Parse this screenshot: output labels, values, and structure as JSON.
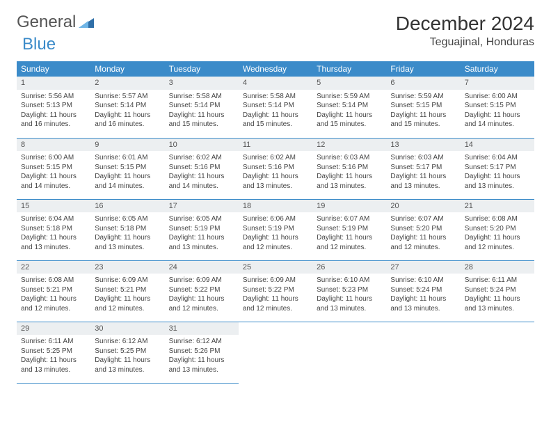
{
  "brand": {
    "part1": "General",
    "part2": "Blue"
  },
  "title": "December 2024",
  "location": "Teguajinal, Honduras",
  "colors": {
    "header_bg": "#3b8bc9",
    "header_fg": "#ffffff",
    "daynum_bg": "#eceff1",
    "border": "#3b8bc9",
    "text": "#444444",
    "background": "#ffffff"
  },
  "weekdays": [
    "Sunday",
    "Monday",
    "Tuesday",
    "Wednesday",
    "Thursday",
    "Friday",
    "Saturday"
  ],
  "weeks": [
    [
      {
        "n": "1",
        "sr": "Sunrise: 5:56 AM",
        "ss": "Sunset: 5:13 PM",
        "d1": "Daylight: 11 hours",
        "d2": "and 16 minutes."
      },
      {
        "n": "2",
        "sr": "Sunrise: 5:57 AM",
        "ss": "Sunset: 5:14 PM",
        "d1": "Daylight: 11 hours",
        "d2": "and 16 minutes."
      },
      {
        "n": "3",
        "sr": "Sunrise: 5:58 AM",
        "ss": "Sunset: 5:14 PM",
        "d1": "Daylight: 11 hours",
        "d2": "and 15 minutes."
      },
      {
        "n": "4",
        "sr": "Sunrise: 5:58 AM",
        "ss": "Sunset: 5:14 PM",
        "d1": "Daylight: 11 hours",
        "d2": "and 15 minutes."
      },
      {
        "n": "5",
        "sr": "Sunrise: 5:59 AM",
        "ss": "Sunset: 5:14 PM",
        "d1": "Daylight: 11 hours",
        "d2": "and 15 minutes."
      },
      {
        "n": "6",
        "sr": "Sunrise: 5:59 AM",
        "ss": "Sunset: 5:15 PM",
        "d1": "Daylight: 11 hours",
        "d2": "and 15 minutes."
      },
      {
        "n": "7",
        "sr": "Sunrise: 6:00 AM",
        "ss": "Sunset: 5:15 PM",
        "d1": "Daylight: 11 hours",
        "d2": "and 14 minutes."
      }
    ],
    [
      {
        "n": "8",
        "sr": "Sunrise: 6:00 AM",
        "ss": "Sunset: 5:15 PM",
        "d1": "Daylight: 11 hours",
        "d2": "and 14 minutes."
      },
      {
        "n": "9",
        "sr": "Sunrise: 6:01 AM",
        "ss": "Sunset: 5:15 PM",
        "d1": "Daylight: 11 hours",
        "d2": "and 14 minutes."
      },
      {
        "n": "10",
        "sr": "Sunrise: 6:02 AM",
        "ss": "Sunset: 5:16 PM",
        "d1": "Daylight: 11 hours",
        "d2": "and 14 minutes."
      },
      {
        "n": "11",
        "sr": "Sunrise: 6:02 AM",
        "ss": "Sunset: 5:16 PM",
        "d1": "Daylight: 11 hours",
        "d2": "and 13 minutes."
      },
      {
        "n": "12",
        "sr": "Sunrise: 6:03 AM",
        "ss": "Sunset: 5:16 PM",
        "d1": "Daylight: 11 hours",
        "d2": "and 13 minutes."
      },
      {
        "n": "13",
        "sr": "Sunrise: 6:03 AM",
        "ss": "Sunset: 5:17 PM",
        "d1": "Daylight: 11 hours",
        "d2": "and 13 minutes."
      },
      {
        "n": "14",
        "sr": "Sunrise: 6:04 AM",
        "ss": "Sunset: 5:17 PM",
        "d1": "Daylight: 11 hours",
        "d2": "and 13 minutes."
      }
    ],
    [
      {
        "n": "15",
        "sr": "Sunrise: 6:04 AM",
        "ss": "Sunset: 5:18 PM",
        "d1": "Daylight: 11 hours",
        "d2": "and 13 minutes."
      },
      {
        "n": "16",
        "sr": "Sunrise: 6:05 AM",
        "ss": "Sunset: 5:18 PM",
        "d1": "Daylight: 11 hours",
        "d2": "and 13 minutes."
      },
      {
        "n": "17",
        "sr": "Sunrise: 6:05 AM",
        "ss": "Sunset: 5:19 PM",
        "d1": "Daylight: 11 hours",
        "d2": "and 13 minutes."
      },
      {
        "n": "18",
        "sr": "Sunrise: 6:06 AM",
        "ss": "Sunset: 5:19 PM",
        "d1": "Daylight: 11 hours",
        "d2": "and 12 minutes."
      },
      {
        "n": "19",
        "sr": "Sunrise: 6:07 AM",
        "ss": "Sunset: 5:19 PM",
        "d1": "Daylight: 11 hours",
        "d2": "and 12 minutes."
      },
      {
        "n": "20",
        "sr": "Sunrise: 6:07 AM",
        "ss": "Sunset: 5:20 PM",
        "d1": "Daylight: 11 hours",
        "d2": "and 12 minutes."
      },
      {
        "n": "21",
        "sr": "Sunrise: 6:08 AM",
        "ss": "Sunset: 5:20 PM",
        "d1": "Daylight: 11 hours",
        "d2": "and 12 minutes."
      }
    ],
    [
      {
        "n": "22",
        "sr": "Sunrise: 6:08 AM",
        "ss": "Sunset: 5:21 PM",
        "d1": "Daylight: 11 hours",
        "d2": "and 12 minutes."
      },
      {
        "n": "23",
        "sr": "Sunrise: 6:09 AM",
        "ss": "Sunset: 5:21 PM",
        "d1": "Daylight: 11 hours",
        "d2": "and 12 minutes."
      },
      {
        "n": "24",
        "sr": "Sunrise: 6:09 AM",
        "ss": "Sunset: 5:22 PM",
        "d1": "Daylight: 11 hours",
        "d2": "and 12 minutes."
      },
      {
        "n": "25",
        "sr": "Sunrise: 6:09 AM",
        "ss": "Sunset: 5:22 PM",
        "d1": "Daylight: 11 hours",
        "d2": "and 12 minutes."
      },
      {
        "n": "26",
        "sr": "Sunrise: 6:10 AM",
        "ss": "Sunset: 5:23 PM",
        "d1": "Daylight: 11 hours",
        "d2": "and 13 minutes."
      },
      {
        "n": "27",
        "sr": "Sunrise: 6:10 AM",
        "ss": "Sunset: 5:24 PM",
        "d1": "Daylight: 11 hours",
        "d2": "and 13 minutes."
      },
      {
        "n": "28",
        "sr": "Sunrise: 6:11 AM",
        "ss": "Sunset: 5:24 PM",
        "d1": "Daylight: 11 hours",
        "d2": "and 13 minutes."
      }
    ],
    [
      {
        "n": "29",
        "sr": "Sunrise: 6:11 AM",
        "ss": "Sunset: 5:25 PM",
        "d1": "Daylight: 11 hours",
        "d2": "and 13 minutes."
      },
      {
        "n": "30",
        "sr": "Sunrise: 6:12 AM",
        "ss": "Sunset: 5:25 PM",
        "d1": "Daylight: 11 hours",
        "d2": "and 13 minutes."
      },
      {
        "n": "31",
        "sr": "Sunrise: 6:12 AM",
        "ss": "Sunset: 5:26 PM",
        "d1": "Daylight: 11 hours",
        "d2": "and 13 minutes."
      },
      null,
      null,
      null,
      null
    ]
  ]
}
